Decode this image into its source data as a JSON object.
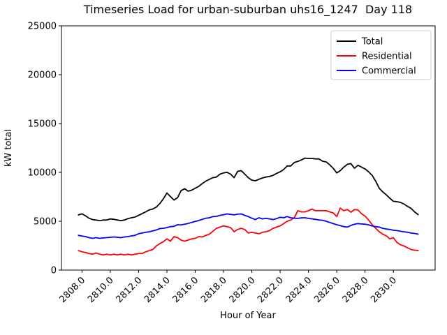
{
  "chart_data": {
    "type": "line",
    "title": "Timeseries Load for urban-suburban uhs16_1247  Day 118",
    "xlabel": "Hour of Year",
    "ylabel": "kW total",
    "xlim": [
      2806.55,
      2832.95
    ],
    "ylim": [
      0,
      25000
    ],
    "grid": false,
    "legend_position": "upper right",
    "x_ticks": {
      "values": [
        2808,
        2810,
        2812,
        2814,
        2816,
        2818,
        2820,
        2822,
        2824,
        2826,
        2828,
        2830
      ],
      "labels": [
        "2808.0",
        "2810.0",
        "2812.0",
        "2814.0",
        "2816.0",
        "2818.0",
        "2820.0",
        "2822.0",
        "2824.0",
        "2826.0",
        "2828.0",
        "2830.0"
      ]
    },
    "y_ticks": {
      "values": [
        0,
        5000,
        10000,
        15000,
        20000,
        25000
      ],
      "labels": [
        "0",
        "5000",
        "10000",
        "15000",
        "20000",
        "25000"
      ]
    },
    "x_start": 2807.75,
    "x_step": 0.25,
    "series": [
      {
        "name": "Total",
        "color": "#000000",
        "values": [
          5650,
          5760,
          5550,
          5310,
          5170,
          5120,
          5060,
          5120,
          5120,
          5240,
          5200,
          5120,
          5060,
          5120,
          5270,
          5360,
          5430,
          5600,
          5780,
          5960,
          6160,
          6250,
          6450,
          6810,
          7290,
          7890,
          7530,
          7170,
          7410,
          8130,
          8330,
          8080,
          8180,
          8380,
          8570,
          8860,
          9100,
          9290,
          9460,
          9530,
          9820,
          9940,
          10010,
          9820,
          9460,
          10110,
          10180,
          9820,
          9460,
          9210,
          9140,
          9290,
          9430,
          9530,
          9580,
          9700,
          9890,
          10060,
          10300,
          10660,
          10660,
          11020,
          11120,
          11270,
          11460,
          11430,
          11430,
          11380,
          11380,
          11140,
          11070,
          10780,
          10420,
          9940,
          10180,
          10540,
          10830,
          10900,
          10420,
          10730,
          10540,
          10350,
          10060,
          9700,
          9100,
          8380,
          8010,
          7700,
          7350,
          7040,
          7000,
          6930,
          6760,
          6520,
          6320,
          5960,
          5680
        ]
      },
      {
        "name": "Residential",
        "color": "#ff0000",
        "values": [
          1990,
          1870,
          1790,
          1700,
          1630,
          1750,
          1630,
          1550,
          1630,
          1550,
          1630,
          1550,
          1630,
          1550,
          1630,
          1550,
          1630,
          1700,
          1700,
          1870,
          1990,
          2110,
          2470,
          2710,
          2910,
          3200,
          2960,
          3430,
          3320,
          3070,
          2960,
          3070,
          3190,
          3250,
          3430,
          3390,
          3550,
          3680,
          3970,
          4280,
          4400,
          4520,
          4440,
          4350,
          3920,
          4160,
          4280,
          4160,
          3790,
          3870,
          3790,
          3720,
          3870,
          3920,
          4040,
          4280,
          4400,
          4520,
          4760,
          5000,
          5120,
          5360,
          6080,
          5960,
          5960,
          6080,
          6250,
          6080,
          6080,
          6080,
          6080,
          5960,
          5850,
          5480,
          6340,
          6080,
          6200,
          5920,
          6200,
          6160,
          5770,
          5530,
          5120,
          4640,
          4280,
          3920,
          3680,
          3510,
          3190,
          3320,
          2830,
          2590,
          2470,
          2280,
          2110,
          2040,
          1990
        ]
      },
      {
        "name": "Commercial",
        "color": "#0000ff",
        "values": [
          3560,
          3480,
          3430,
          3320,
          3250,
          3320,
          3250,
          3290,
          3320,
          3360,
          3390,
          3360,
          3320,
          3390,
          3430,
          3500,
          3560,
          3720,
          3790,
          3870,
          3920,
          4010,
          4110,
          4250,
          4280,
          4350,
          4440,
          4480,
          4640,
          4620,
          4690,
          4770,
          4880,
          4980,
          5070,
          5190,
          5310,
          5360,
          5480,
          5500,
          5600,
          5670,
          5750,
          5700,
          5650,
          5720,
          5750,
          5600,
          5480,
          5310,
          5170,
          5360,
          5240,
          5310,
          5240,
          5170,
          5270,
          5410,
          5360,
          5480,
          5360,
          5310,
          5290,
          5340,
          5360,
          5290,
          5240,
          5190,
          5120,
          5100,
          5000,
          4880,
          4760,
          4640,
          4550,
          4450,
          4400,
          4570,
          4690,
          4760,
          4720,
          4690,
          4620,
          4520,
          4450,
          4400,
          4280,
          4210,
          4160,
          4080,
          4040,
          3970,
          3920,
          3870,
          3790,
          3750,
          3680
        ]
      }
    ]
  }
}
